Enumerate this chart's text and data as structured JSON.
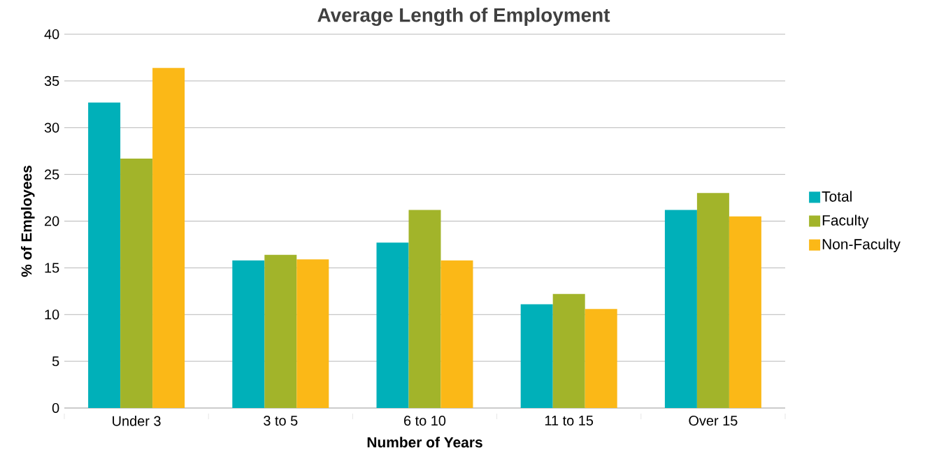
{
  "chart_data": {
    "type": "bar",
    "title": "Average Length of Employment",
    "xlabel": "Number of Years",
    "ylabel": "% of Employees",
    "categories": [
      "Under 3",
      "3 to 5",
      "6 to 10",
      "11 to 15",
      "Over 15"
    ],
    "series": [
      {
        "name": "Total",
        "color": "#00b0b9",
        "values": [
          32.7,
          15.8,
          17.7,
          11.1,
          21.2
        ]
      },
      {
        "name": "Faculty",
        "color": "#a2b42a",
        "values": [
          26.7,
          16.4,
          21.2,
          12.2,
          23.0
        ]
      },
      {
        "name": "Non-Faculty",
        "color": "#fbb817",
        "values": [
          36.4,
          15.9,
          15.8,
          10.6,
          20.5
        ]
      }
    ],
    "ylim": [
      0,
      40
    ],
    "yticks": [
      0,
      5,
      10,
      15,
      20,
      25,
      30,
      35,
      40
    ],
    "grid": "y",
    "legend": "right"
  }
}
